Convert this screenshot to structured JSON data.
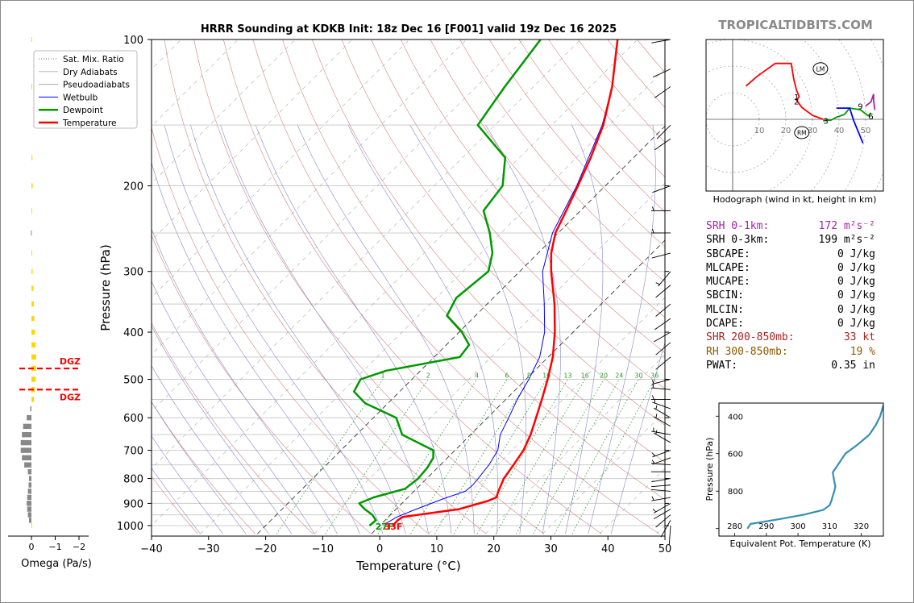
{
  "site": "TROPICALTIDBITS.COM",
  "colors": {
    "temperature": "#ff0000",
    "dewpoint": "#009900",
    "wetbulb": "#0000ff",
    "dry_adiabat": "#d98080",
    "moist_adiabat": "#8888cc",
    "mixing_ratio": "#2a9a2a",
    "isotherm": "#000000",
    "srh1": "#aa22aa",
    "shear": "#aa2222",
    "rh": "#8a5a00",
    "theta_e": "#3590b0",
    "omega_up": "#ffd700",
    "omega_down": "#888888",
    "dgz": "#ff0000"
  },
  "chart_data": [
    {
      "type": "skew-t",
      "title": "HRRR Sounding at KDKB Init: 18z Dec 16 [F001] valid 19z Dec 16 2025",
      "xlabel": "Temperature (°C)",
      "ylabel": "Pressure (hPa)",
      "xlim": [
        -40,
        50
      ],
      "ylim": [
        1040,
        100
      ],
      "y_scale": "log",
      "x_ticks": [
        -40,
        -30,
        -20,
        -10,
        0,
        10,
        20,
        30,
        40,
        50
      ],
      "x_tick_labels": [
        "−40",
        "−30",
        "−20",
        "−10",
        "0",
        "10",
        "20",
        "30",
        "40",
        "50"
      ],
      "p_ticks": [
        1000,
        900,
        800,
        700,
        600,
        500,
        400,
        300,
        200,
        100
      ],
      "mixing_ratio_labels": [
        "1",
        "2",
        "4",
        "6",
        "8",
        "10",
        "13",
        "16",
        "20",
        "24",
        "30",
        "36"
      ],
      "legend": {
        "position": "top-left",
        "entries": [
          "Sat. Mix. Ratio",
          "Dry Adiabats",
          "Pseudoadiabats",
          "Wetbulb",
          "Dewpoint",
          "Temperature"
        ]
      },
      "surface_labels": {
        "dewpoint": "27F",
        "temperature": "33F"
      },
      "series": [
        {
          "name": "Temperature",
          "points": [
            [
              1000,
              2.3
            ],
            [
              975,
              2.2
            ],
            [
              960,
              2.5
            ],
            [
              925,
              11
            ],
            [
              890,
              14.6
            ],
            [
              875,
              15.5
            ],
            [
              850,
              14.8
            ],
            [
              800,
              13.5
            ],
            [
              750,
              12.8
            ],
            [
              700,
              12.0
            ],
            [
              650,
              10.5
            ],
            [
              600,
              8.5
            ],
            [
              550,
              6.3
            ],
            [
              500,
              3.8
            ],
            [
              450,
              0.8
            ],
            [
              400,
              -3.2
            ],
            [
              350,
              -8.2
            ],
            [
              300,
              -14.5
            ],
            [
              275,
              -17.7
            ],
            [
              250,
              -20.5
            ],
            [
              225,
              -22.5
            ],
            [
              200,
              -24.8
            ],
            [
              175,
              -27.5
            ],
            [
              150,
              -31
            ],
            [
              125,
              -36.2
            ],
            [
              100,
              -43.5
            ]
          ]
        },
        {
          "name": "Dewpoint",
          "points": [
            [
              1000,
              -1.8
            ],
            [
              975,
              -1.6
            ],
            [
              950,
              -3.2
            ],
            [
              925,
              -5.5
            ],
            [
              900,
              -7.5
            ],
            [
              875,
              -6
            ],
            [
              840,
              -2
            ],
            [
              800,
              -1.5
            ],
            [
              760,
              -1.8
            ],
            [
              725,
              -2.5
            ],
            [
              700,
              -3.8
            ],
            [
              650,
              -12
            ],
            [
              600,
              -16
            ],
            [
              560,
              -24
            ],
            [
              530,
              -28
            ],
            [
              500,
              -29
            ],
            [
              480,
              -26
            ],
            [
              450,
              -15.5
            ],
            [
              425,
              -16
            ],
            [
              400,
              -19.5
            ],
            [
              370,
              -25
            ],
            [
              340,
              -26.5
            ],
            [
              300,
              -25.5
            ],
            [
              275,
              -28
            ],
            [
              250,
              -32
            ],
            [
              225,
              -37
            ],
            [
              200,
              -38
            ],
            [
              175,
              -42.5
            ],
            [
              150,
              -53
            ],
            [
              125,
              -55
            ],
            [
              100,
              -57
            ]
          ]
        },
        {
          "name": "Wetbulb",
          "points": [
            [
              990,
              0.7
            ],
            [
              960,
              1.5
            ],
            [
              925,
              3.5
            ],
            [
              880,
              6.5
            ],
            [
              850,
              9.0
            ],
            [
              825,
              9.2
            ],
            [
              800,
              9.0
            ],
            [
              750,
              8.5
            ],
            [
              700,
              7.5
            ],
            [
              650,
              5.2
            ],
            [
              600,
              3.7
            ],
            [
              550,
              2.0
            ],
            [
              500,
              0.5
            ],
            [
              450,
              -1.5
            ],
            [
              400,
              -5.0
            ],
            [
              350,
              -10
            ],
            [
              300,
              -16
            ],
            [
              250,
              -21
            ],
            [
              200,
              -25
            ],
            [
              150,
              -31.2
            ],
            [
              125,
              -36.2
            ],
            [
              100,
              -43.5
            ]
          ]
        }
      ]
    },
    {
      "type": "bar",
      "xlabel": "Omega (Pa/s)",
      "x_ticks": [
        0,
        -1,
        -2
      ],
      "x_tick_labels": [
        "0",
        "−1",
        "−2"
      ],
      "dgz_label": "DGZ",
      "dgz_bounds_hpa": [
        475,
        525
      ],
      "values": [
        [
          1000,
          -0.03
        ],
        [
          975,
          0.1
        ],
        [
          950,
          0.15
        ],
        [
          925,
          0.18
        ],
        [
          900,
          0.2
        ],
        [
          875,
          0.18
        ],
        [
          850,
          0.15
        ],
        [
          825,
          0.12
        ],
        [
          800,
          0.1
        ],
        [
          775,
          0.15
        ],
        [
          750,
          0.3
        ],
        [
          725,
          0.4
        ],
        [
          700,
          0.45
        ],
        [
          675,
          0.45
        ],
        [
          650,
          0.4
        ],
        [
          625,
          0.35
        ],
        [
          600,
          0.2
        ],
        [
          575,
          0.05
        ],
        [
          550,
          -0.1
        ],
        [
          525,
          -0.15
        ],
        [
          500,
          -0.18
        ],
        [
          475,
          -0.2
        ],
        [
          450,
          -0.2
        ],
        [
          425,
          -0.18
        ],
        [
          400,
          -0.15
        ],
        [
          375,
          -0.12
        ],
        [
          350,
          -0.1
        ],
        [
          325,
          -0.08
        ],
        [
          300,
          -0.05
        ],
        [
          275,
          0.0
        ],
        [
          250,
          0.02
        ],
        [
          225,
          -0.03
        ],
        [
          200,
          -0.05
        ],
        [
          175,
          -0.04
        ],
        [
          125,
          -0.02
        ],
        [
          100,
          -0.01
        ]
      ]
    },
    {
      "type": "line",
      "xlabel": "Equivalent Pot. Temperature (K)",
      "ylabel": "Pressure (hPa)",
      "xlim": [
        275,
        327
      ],
      "ylim": [
        1040,
        330
      ],
      "x_ticks": [
        280,
        290,
        300,
        310,
        320
      ],
      "y_ticks": [
        400,
        600,
        800
      ],
      "series": [
        {
          "points": [
            [
              1000,
              284
            ],
            [
              975,
              285
            ],
            [
              950,
              294
            ],
            [
              925,
              302
            ],
            [
              900,
              308
            ],
            [
              875,
              310
            ],
            [
              850,
              310.6
            ],
            [
              825,
              311
            ],
            [
              800,
              311.5
            ],
            [
              775,
              311.8
            ],
            [
              750,
              311.5
            ],
            [
              700,
              311
            ],
            [
              650,
              313
            ],
            [
              600,
              315
            ],
            [
              550,
              319
            ],
            [
              500,
              322.5
            ],
            [
              450,
              324.5
            ],
            [
              400,
              326
            ],
            [
              340,
              327
            ]
          ]
        }
      ]
    },
    {
      "type": "hodograph",
      "xlabel": "Hodograph (wind in kt, height in km)",
      "ring_labels": [
        "10",
        "20",
        "30",
        "40",
        "50"
      ],
      "markers": [
        {
          "label": "LM",
          "u": 33,
          "v": 19
        },
        {
          "label": "RM",
          "u": 26,
          "v": -5
        }
      ],
      "height_labels": [
        {
          "label": "1",
          "u": 24,
          "v": 8.5
        },
        {
          "label": "2",
          "u": 24,
          "v": 6.8
        },
        {
          "label": "3",
          "u": 35,
          "v": -0.5
        },
        {
          "label": "6",
          "u": 52,
          "v": 1.2
        },
        {
          "label": "9",
          "u": 48,
          "v": 5
        }
      ],
      "segments": [
        {
          "color": "#ff0000",
          "points": [
            [
              5,
              12.5
            ],
            [
              9,
              16
            ],
            [
              16,
              21
            ],
            [
              22,
              21
            ],
            [
              23,
              15
            ],
            [
              24,
              11
            ],
            [
              25,
              8.5
            ],
            [
              24,
              7.2
            ],
            [
              26,
              4.5
            ],
            [
              30,
              1.5
            ],
            [
              34,
              0
            ]
          ]
        },
        {
          "color": "#009900",
          "points": [
            [
              34,
              -0.5
            ],
            [
              37,
              -0.3
            ],
            [
              39,
              0.8
            ],
            [
              42,
              1.8
            ],
            [
              44,
              4.2
            ],
            [
              48,
              3.6
            ],
            [
              51,
              1.3
            ],
            [
              52,
              2.5
            ]
          ]
        },
        {
          "color": "#0000ff",
          "points": [
            [
              39,
              4.2
            ],
            [
              44,
              4.2
            ],
            [
              45.5,
              -0.5
            ],
            [
              49,
              -9
            ]
          ]
        },
        {
          "color": "#aa22aa",
          "points": [
            [
              50,
              5
            ],
            [
              52,
              6.5
            ],
            [
              53,
              9.5
            ],
            [
              53,
              7
            ],
            [
              53.5,
              3.5
            ]
          ]
        }
      ]
    }
  ],
  "stats": [
    {
      "label": "SRH 0-1km:",
      "value": "172 m²s⁻²",
      "color": "#aa22aa"
    },
    {
      "label": "SRH 0-3km:",
      "value": "199 m²s⁻²",
      "color": "#000000"
    },
    {
      "label": "SBCAPE:",
      "value": "0 J/kg",
      "color": "#000000"
    },
    {
      "label": "MLCAPE:",
      "value": "0 J/kg",
      "color": "#000000"
    },
    {
      "label": "MUCAPE:",
      "value": "0 J/kg",
      "color": "#000000"
    },
    {
      "label": "SBCIN:",
      "value": "0 J/kg",
      "color": "#000000"
    },
    {
      "label": "MLCIN:",
      "value": "0 J/kg",
      "color": "#000000"
    },
    {
      "label": "DCAPE:",
      "value": "0 J/kg",
      "color": "#000000"
    },
    {
      "label": "SHR 200-850mb:",
      "value": "33 kt",
      "color": "#aa2222"
    },
    {
      "label": "RH 300-850mb:",
      "value": "19 %",
      "color": "#8a5a00"
    },
    {
      "label": "PWAT:",
      "value": "0.35 in",
      "color": "#000000"
    }
  ],
  "wind_barbs": [
    [
      1000,
      4,
      0
    ],
    [
      975,
      30,
      1
    ],
    [
      950,
      50,
      3
    ],
    [
      925,
      60,
      3
    ],
    [
      900,
      60,
      6
    ],
    [
      875,
      80,
      6
    ],
    [
      850,
      95,
      4
    ],
    [
      825,
      85,
      2
    ],
    [
      800,
      80,
      0
    ],
    [
      775,
      90,
      2
    ],
    [
      750,
      95,
      4
    ],
    [
      725,
      70,
      5
    ],
    [
      700,
      70,
      8
    ],
    [
      675,
      120,
      6
    ],
    [
      650,
      100,
      6
    ],
    [
      625,
      120,
      6
    ],
    [
      600,
      120,
      6
    ],
    [
      575,
      110,
      6
    ],
    [
      550,
      90,
      6
    ],
    [
      525,
      95,
      6
    ],
    [
      500,
      75,
      6
    ],
    [
      450,
      50,
      3
    ],
    [
      420,
      50,
      3
    ],
    [
      400,
      60,
      4
    ],
    [
      375,
      55,
      4
    ],
    [
      350,
      50,
      2
    ],
    [
      320,
      50,
      3
    ],
    [
      300,
      40,
      5
    ],
    [
      275,
      75,
      4
    ],
    [
      250,
      90,
      5
    ],
    [
      225,
      90,
      5
    ],
    [
      200,
      70,
      1
    ],
    [
      160,
      55,
      3
    ],
    [
      150,
      45,
      2
    ],
    [
      125,
      55,
      2
    ],
    [
      115,
      65,
      1
    ],
    [
      100,
      80,
      2
    ]
  ]
}
